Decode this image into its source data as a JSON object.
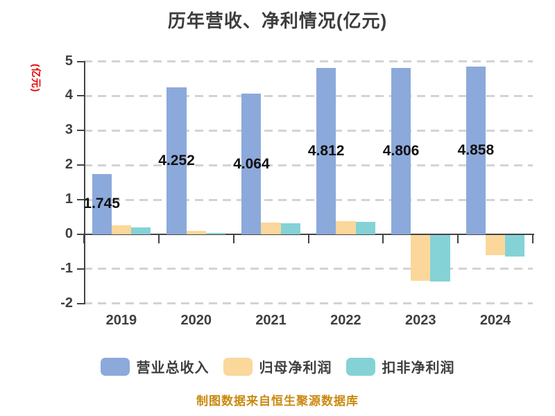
{
  "chart_data": {
    "type": "bar",
    "title": "历年营收、净利情况(亿元)",
    "ylabel": "(亿元)",
    "source_note": "制图数据来自恒生聚源数据库",
    "categories": [
      "2019",
      "2020",
      "2021",
      "2022",
      "2023",
      "2024"
    ],
    "series": [
      {
        "id": "total-revenue",
        "name": "营业总收入",
        "color": "#8CA9DB",
        "values": [
          1.745,
          4.252,
          4.064,
          4.812,
          4.806,
          4.858
        ],
        "labels": [
          "1.745",
          "4.252",
          "4.064",
          "4.812",
          "4.806",
          "4.858"
        ],
        "show_labels": true
      },
      {
        "id": "net-profit-attributable",
        "name": "归母净利润",
        "color": "#FBD79B",
        "values": [
          0.26,
          0.1,
          0.34,
          0.39,
          -1.33,
          -0.59
        ],
        "show_labels": false
      },
      {
        "id": "non-gaap-net-profit",
        "name": "扣非净利润",
        "color": "#85D2D6",
        "values": [
          0.2,
          0.05,
          0.33,
          0.37,
          -1.35,
          -0.63
        ],
        "show_labels": false
      }
    ],
    "y_ticks": [
      5,
      4,
      3,
      2,
      1,
      0,
      -1,
      -2
    ],
    "ylim": [
      -2,
      5
    ],
    "grid": "dashed-horizontal",
    "legend_position": "bottom",
    "colors": {
      "axis": "#444444",
      "grid": "#d3d3d3",
      "tick_label": "#3f3f3f",
      "title": "#3d3d3d",
      "ylabel": "#e60000",
      "value_label": "#111111",
      "source_note": "#c9890f",
      "background": "#ffffff"
    }
  }
}
